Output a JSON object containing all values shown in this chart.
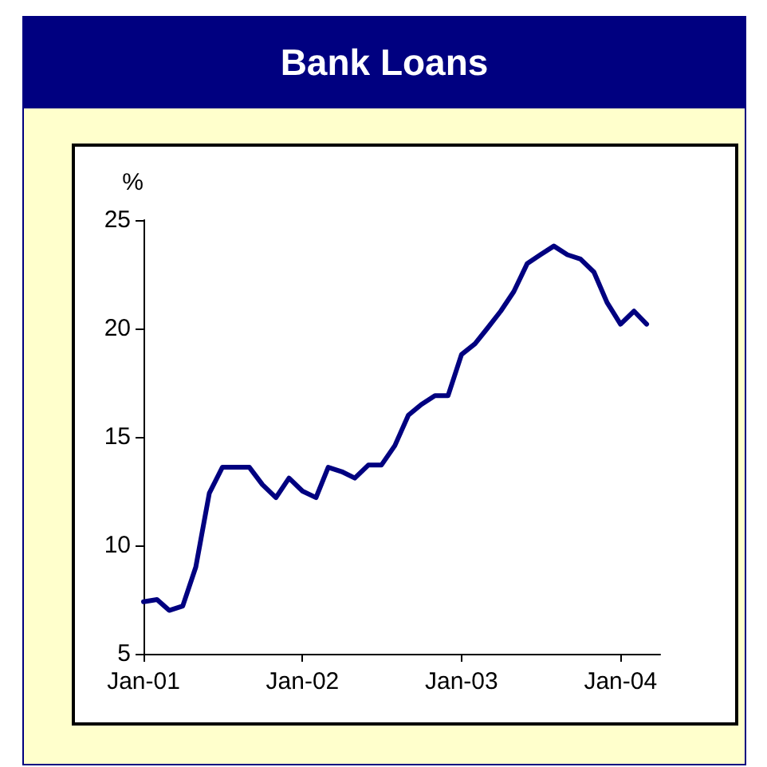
{
  "chart_data": {
    "type": "line",
    "title": "Bank Loans",
    "ylabel": "%",
    "x": [
      "2001-01",
      "2001-02",
      "2001-03",
      "2001-04",
      "2001-05",
      "2001-06",
      "2001-07",
      "2001-08",
      "2001-09",
      "2001-10",
      "2001-11",
      "2001-12",
      "2002-01",
      "2002-02",
      "2002-03",
      "2002-04",
      "2002-05",
      "2002-06",
      "2002-07",
      "2002-08",
      "2002-09",
      "2002-10",
      "2002-11",
      "2002-12",
      "2003-01",
      "2003-02",
      "2003-03",
      "2003-04",
      "2003-05",
      "2003-06",
      "2003-07",
      "2003-08",
      "2003-09",
      "2003-10",
      "2003-11",
      "2003-12",
      "2004-01",
      "2004-02",
      "2004-03"
    ],
    "series": [
      {
        "color": "#000080",
        "values": [
          7.4,
          7.5,
          7.0,
          7.2,
          9.0,
          12.4,
          13.6,
          13.6,
          13.6,
          12.8,
          12.2,
          13.1,
          12.5,
          12.2,
          13.6,
          13.4,
          13.1,
          13.7,
          13.7,
          14.6,
          16.0,
          16.5,
          16.9,
          16.9,
          18.8,
          19.3,
          20.0,
          20.8,
          21.7,
          23.0,
          23.4,
          23.8,
          23.4,
          23.2,
          22.6,
          21.2,
          20.2,
          20.8,
          20.2
        ]
      }
    ],
    "xlim": [
      "2001-01",
      "2004-04"
    ],
    "xticks": [
      {
        "value": "2001-01",
        "label": "Jan-01"
      },
      {
        "value": "2002-01",
        "label": "Jan-02"
      },
      {
        "value": "2003-01",
        "label": "Jan-03"
      },
      {
        "value": "2004-01",
        "label": "Jan-04"
      }
    ],
    "ylim": [
      5,
      25
    ],
    "yticks": [
      5,
      10,
      15,
      20,
      25
    ],
    "marker": "none",
    "line_style": "solid"
  }
}
